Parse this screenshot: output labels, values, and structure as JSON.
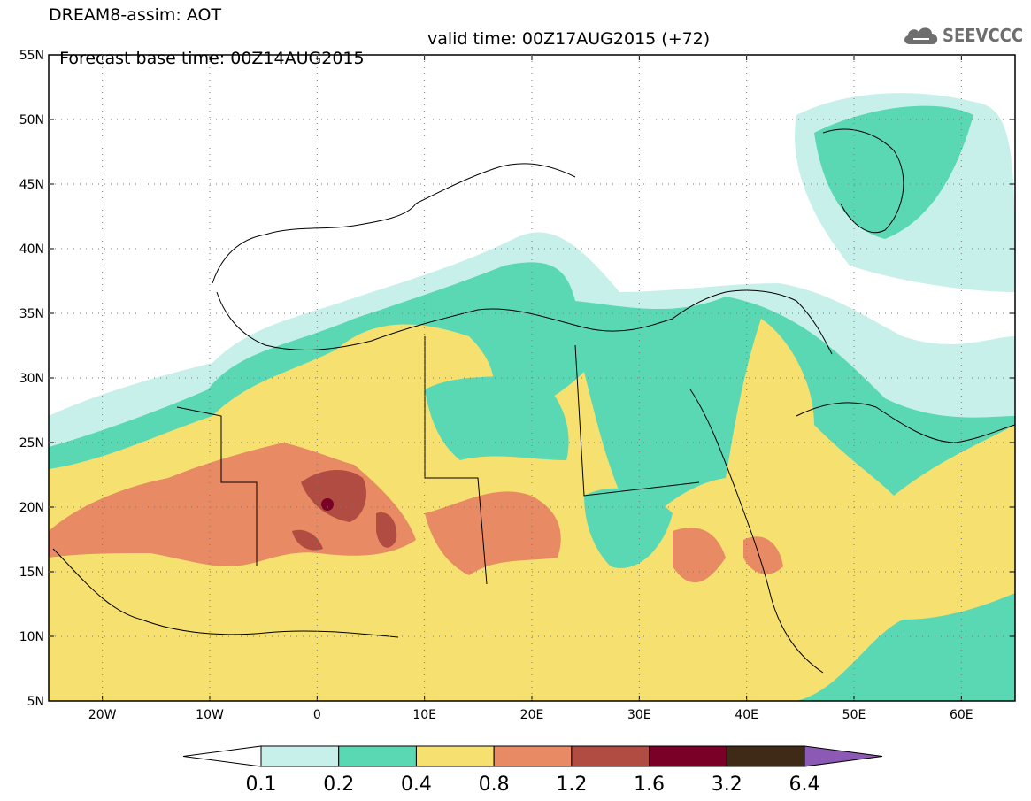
{
  "title": {
    "line1": "DREAM8-assim: AOT",
    "base_time": "Forecast base time: 00Z14AUG2015",
    "valid_time": "valid time: 00Z17AUG2015 (+72)"
  },
  "logo": {
    "text": "SEEVCCC",
    "icon": "cloud-icon"
  },
  "map": {
    "lat_labels": [
      "55N",
      "50N",
      "45N",
      "40N",
      "35N",
      "30N",
      "25N",
      "20N",
      "15N",
      "10N",
      "5N"
    ],
    "lon_labels": [
      "20W",
      "10W",
      "0",
      "10E",
      "20E",
      "30E",
      "40E",
      "50E",
      "60E"
    ],
    "lon_range": [
      -25,
      65
    ],
    "lat_range": [
      5,
      55
    ],
    "variable": "Aerosol optical thickness (AOT)"
  },
  "colorbar": {
    "tick_labels": [
      "0.1",
      "0.2",
      "0.4",
      "0.8",
      "1.2",
      "1.6",
      "3.2",
      "6.4"
    ],
    "colors": [
      "#ffffff",
      "#c8f0ea",
      "#5ad8b4",
      "#f5e070",
      "#e88a64",
      "#b04c42",
      "#7a0028",
      "#3e2a16",
      "#8c5ab4"
    ]
  },
  "palette": {
    "aot_0_1": "#c8f0ea",
    "aot_0_2": "#5ad8b4",
    "aot_0_4": "#f5e070",
    "aot_0_8": "#e88a64",
    "aot_1_2": "#b04c42",
    "aot_1_6": "#7a0028"
  }
}
